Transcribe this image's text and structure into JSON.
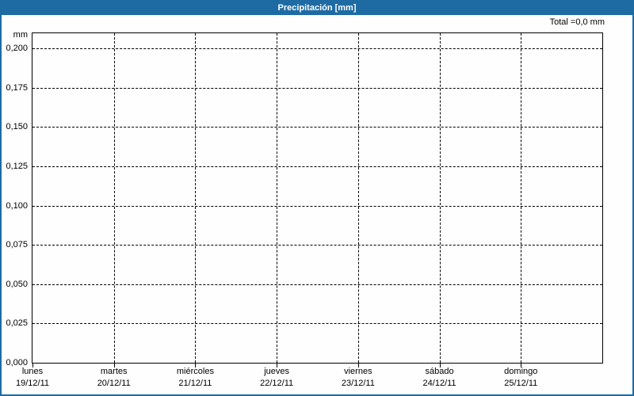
{
  "header": {
    "title": "Precipitación [mm]",
    "bg_color": "#1e6ba4",
    "text_color": "#ffffff"
  },
  "total": {
    "label": "Total =0,0 mm"
  },
  "chart_data": {
    "type": "bar",
    "title": "Precipitación [mm]",
    "xlabel": "",
    "ylabel": "mm",
    "ylim": [
      0,
      0.2
    ],
    "y_tick_step": 0.025,
    "y_tick_labels": [
      "0,200",
      "0,175",
      "0,150",
      "0,125",
      "0,100",
      "0,075",
      "0,050",
      "0,025",
      "0,000"
    ],
    "y_tick_values": [
      0.2,
      0.175,
      0.15,
      0.125,
      0.1,
      0.075,
      0.05,
      0.025,
      0.0
    ],
    "categories": [
      "lunes",
      "martes",
      "miércoles",
      "jueves",
      "viernes",
      "sábado",
      "domingo"
    ],
    "category_dates": [
      "19/12/11",
      "20/12/11",
      "21/12/11",
      "22/12/11",
      "23/12/11",
      "24/12/11",
      "25/12/11"
    ],
    "series": [
      {
        "name": "Precipitación",
        "values": [
          0.0,
          0.0,
          0.0,
          0.0,
          0.0,
          0.0,
          0.0
        ]
      }
    ],
    "total_mm": 0.0,
    "total_label": "Total =0,0 mm",
    "grid": "dashed",
    "legend_position": "none",
    "colors": {
      "grid_line": "#000000",
      "plot_border": "#000000",
      "background": "#fdfefd",
      "frame_border": "#1e6ba4"
    }
  }
}
